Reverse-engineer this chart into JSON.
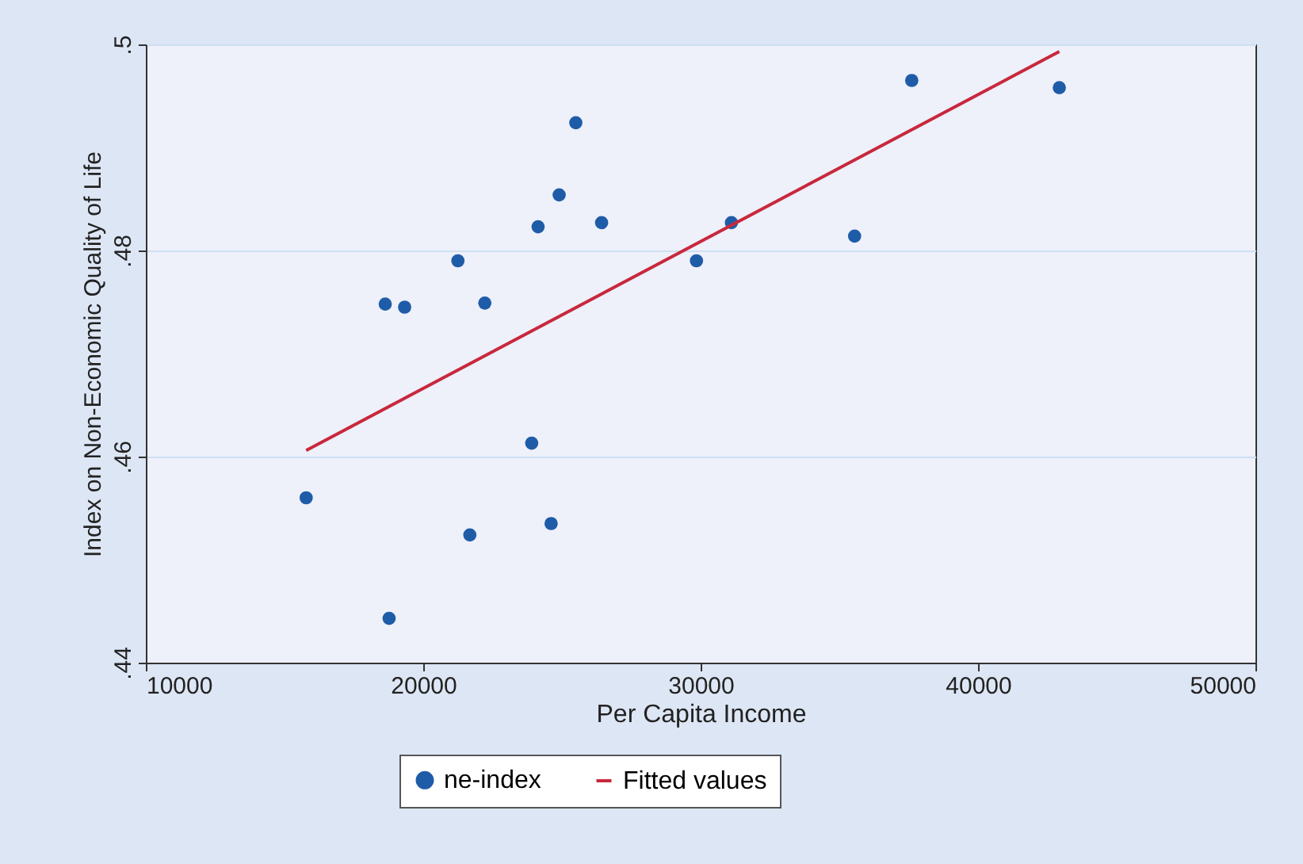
{
  "chart_data": {
    "type": "scatter",
    "xlabel": "Per Capita Income",
    "ylabel": "Index on Non-Economic Quality of Life",
    "xlim": [
      10000,
      50000
    ],
    "xticks": [
      10000,
      20000,
      30000,
      40000,
      50000
    ],
    "ylim": [
      0.44,
      0.5
    ],
    "yticks": [
      {
        "value": 0.44,
        "label": ".44"
      },
      {
        "value": 0.46,
        "label": ".46"
      },
      {
        "value": 0.48,
        "label": ".48"
      },
      {
        "value": 0.5,
        "label": ".5"
      }
    ],
    "grid": "y",
    "legend": "bottom",
    "series": [
      {
        "name": "ne-index",
        "marker": "circle",
        "color": "#1f5ca8",
        "x": [
          15780,
          18630,
          19330,
          21250,
          22220,
          18770,
          21680,
          23910,
          24140,
          24610,
          24900,
          25500,
          26430,
          29850,
          31110,
          35550,
          37610,
          42930
        ],
        "values": [
          0.456,
          0.4748,
          0.4745,
          0.479,
          0.4749,
          0.4443,
          0.4524,
          0.4613,
          0.4823,
          0.4535,
          0.4854,
          0.4924,
          0.4827,
          0.479,
          0.4827,
          0.4814,
          0.4965,
          0.4958
        ]
      },
      {
        "name": "Fitted values",
        "type": "line",
        "marker": "none",
        "line_style": "solid",
        "color": "#c8283c",
        "x": [
          15780,
          42930
        ],
        "values": [
          0.4606,
          0.4993
        ]
      }
    ]
  }
}
